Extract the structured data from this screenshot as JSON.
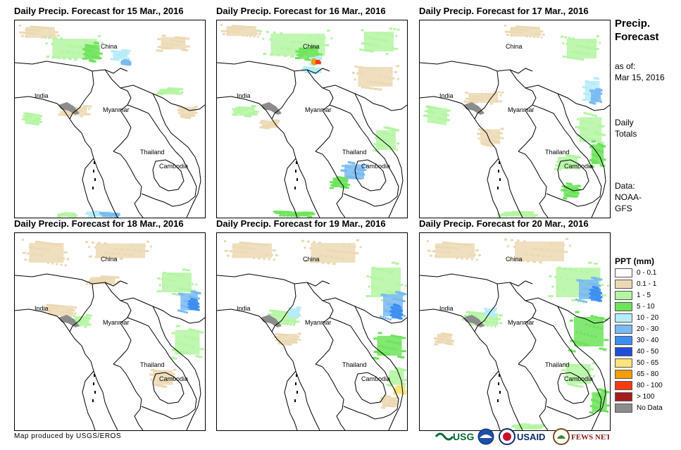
{
  "panels": [
    {
      "title": "Daily Precip. Forecast for 15 Mar., 2016",
      "day": 0
    },
    {
      "title": "Daily Precip. Forecast for 16 Mar., 2016",
      "day": 1
    },
    {
      "title": "Daily Precip. Forecast for 17 Mar., 2016",
      "day": 2
    },
    {
      "title": "Daily Precip. Forecast for 18 Mar., 2016",
      "day": 3
    },
    {
      "title": "Daily Precip. Forecast for 19 Mar., 2016",
      "day": 4
    },
    {
      "title": "Daily Precip. Forecast for 20 Mar., 2016",
      "day": 5
    }
  ],
  "map_labels": {
    "china": "China",
    "india": "India",
    "myanmar": "Myanmar",
    "thailand": "Thailand",
    "cambodia": "Cambodia"
  },
  "sidebar": {
    "title_line1": "Precip.",
    "title_line2": "Forecast",
    "asof_line1": "as of:",
    "asof_line2": "Mar 15, 2016",
    "totals_line1": "Daily",
    "totals_line2": "Totals",
    "data_line1": "Data:",
    "data_line2": "NOAA-",
    "data_line3": "GFS"
  },
  "legend": {
    "title": "PPT (mm)",
    "items": [
      {
        "label": "0 - 0.1",
        "color": "#ffffff"
      },
      {
        "label": "0.1 - 1",
        "color": "#ecd9b4"
      },
      {
        "label": "1 - 5",
        "color": "#b4f5a2"
      },
      {
        "label": "5 - 10",
        "color": "#6de35a"
      },
      {
        "label": "10 - 20",
        "color": "#b6ecf7"
      },
      {
        "label": "20 - 30",
        "color": "#79baf2"
      },
      {
        "label": "30 - 40",
        "color": "#3c8ef0"
      },
      {
        "label": "40 - 50",
        "color": "#1f4fd8"
      },
      {
        "label": "50 - 65",
        "color": "#fbe47a"
      },
      {
        "label": "65 - 80",
        "color": "#f59c0a"
      },
      {
        "label": "80 - 100",
        "color": "#f43c14"
      },
      {
        "label": "> 100",
        "color": "#a61c1c"
      },
      {
        "label": "No Data",
        "color": "#8c8c8c"
      }
    ]
  },
  "credit": "Map produced by USGS/EROS",
  "logos": {
    "usgs": "USGS",
    "usaid": "USAID",
    "fewsnet": "FEWS NET"
  }
}
